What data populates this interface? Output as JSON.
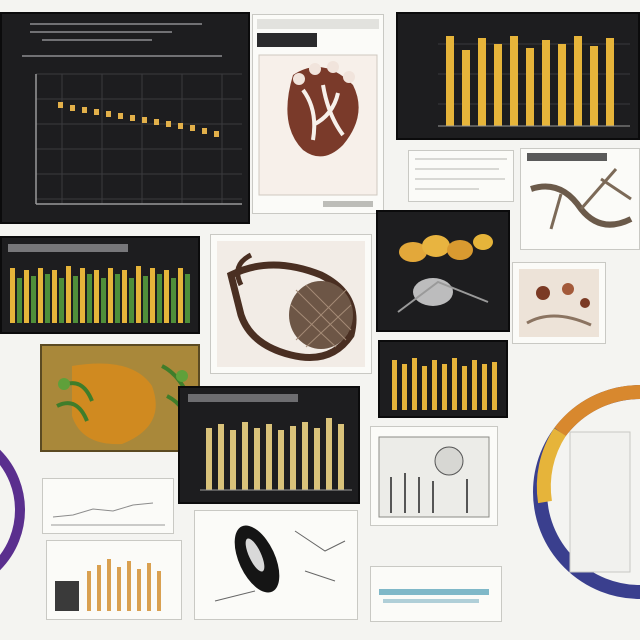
{
  "collage": {
    "panels": [
      {
        "kind": "line-chart-dark"
      },
      {
        "kind": "illustration-branch"
      },
      {
        "kind": "bar-chart-yellow"
      },
      {
        "kind": "spec-sheet"
      },
      {
        "kind": "sketch-branches"
      },
      {
        "kind": "bar-chart-green"
      },
      {
        "kind": "photo-branch-net"
      },
      {
        "kind": "photo-leaves-dark"
      },
      {
        "kind": "specimen-card"
      },
      {
        "kind": "bar-chart-small"
      },
      {
        "kind": "illustration-plant"
      },
      {
        "kind": "bar-chart-tan"
      },
      {
        "kind": "technical-drawing"
      },
      {
        "kind": "line-chart-light"
      },
      {
        "kind": "bar-chart-bottom"
      },
      {
        "kind": "sketch-leaf"
      },
      {
        "kind": "caption-card"
      },
      {
        "kind": "ring-diagram"
      },
      {
        "kind": "ring-left"
      }
    ]
  },
  "colors": {
    "dark_bg": "#1d1d1f",
    "bar_gold": "#e6b43a",
    "bar_green": "#4f8f3a",
    "brown": "#5a3322",
    "ring_blue": "#3a3f8e",
    "ring_orange": "#d8882e"
  }
}
